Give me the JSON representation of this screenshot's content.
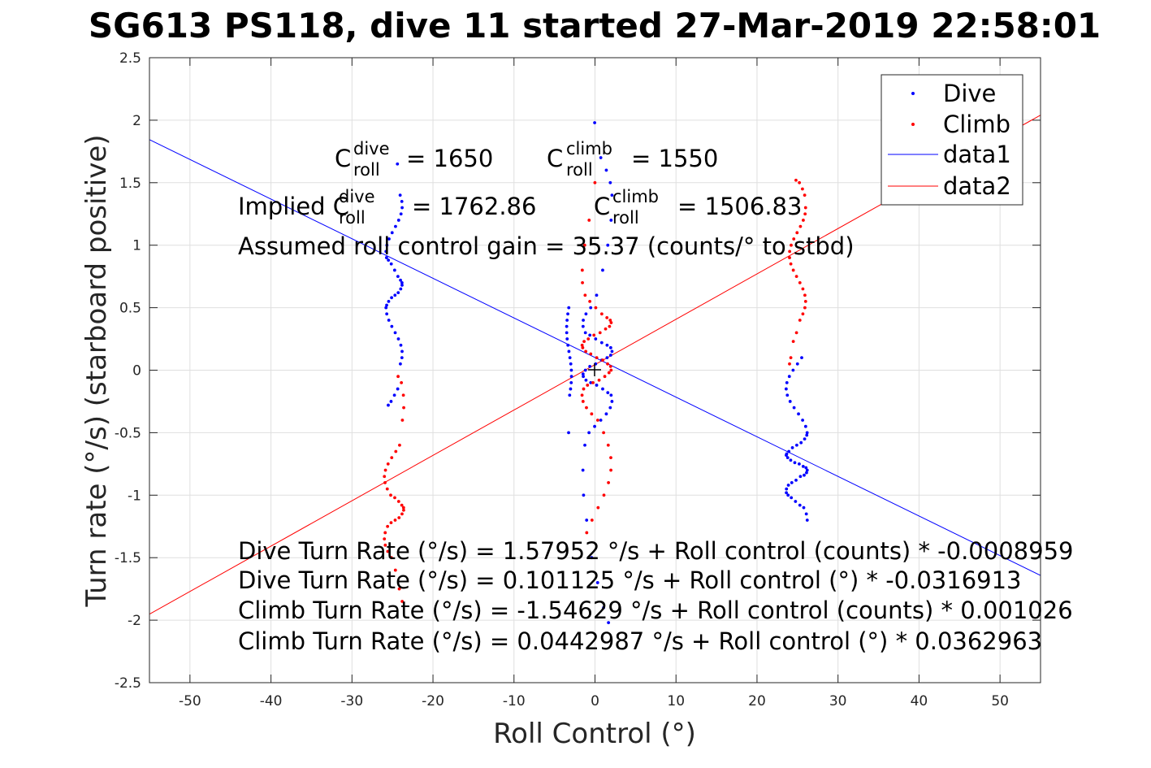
{
  "chart_data": {
    "type": "scatter",
    "title": "SG613 PS118, dive 11 started 27-Mar-2019 22:58:01",
    "xlabel": "Roll Control (°)",
    "ylabel": "Turn rate (°/s) (starboard positive)",
    "xlim": [
      -55,
      55
    ],
    "ylim": [
      -2.5,
      2.5
    ],
    "xticks": [
      -50,
      -40,
      -30,
      -20,
      -10,
      0,
      10,
      20,
      30,
      40,
      50
    ],
    "yticks": [
      -2.5,
      -2,
      -1.5,
      -1,
      -0.5,
      0,
      0.5,
      1,
      1.5,
      2,
      2.5
    ],
    "xtick_labels": [
      "-50",
      "-40",
      "-30",
      "-20",
      "-10",
      "0",
      "10",
      "20",
      "30",
      "40",
      "50"
    ],
    "ytick_labels": [
      "-2.5",
      "-2",
      "-1.5",
      "-1",
      "-0.5",
      "0",
      "0.5",
      "1",
      "1.5",
      "2",
      "2.5"
    ],
    "grid": true,
    "legend_position": "top-right",
    "series": [
      {
        "name": "Dive",
        "kind": "points",
        "color": "#0000ff",
        "clusters": [
          {
            "x_center": -24.8,
            "x_spread": 1.0,
            "y_values": [
              1.65,
              1.4,
              1.35,
              1.3,
              1.25,
              1.2,
              1.15,
              1.1,
              1.05,
              1.0,
              0.95,
              0.9,
              0.88,
              0.85,
              0.8,
              0.75,
              0.72,
              0.7,
              0.68,
              0.65,
              0.62,
              0.6,
              0.58,
              0.55,
              0.52,
              0.5,
              0.45,
              0.4,
              0.35,
              0.3,
              0.25,
              0.2,
              0.15,
              0.1,
              0.05,
              -0.15,
              -0.2,
              -0.25,
              -0.28
            ]
          },
          {
            "x_center": -3.2,
            "x_spread": 0.3,
            "y_values": [
              0.5,
              0.45,
              0.4,
              0.35,
              0.3,
              0.25,
              0.2,
              0.15,
              0.1,
              0.05,
              0.0,
              -0.05,
              -0.1,
              -0.15,
              -0.2,
              -0.5
            ]
          },
          {
            "x_center": 0.3,
            "x_spread": 1.8,
            "y_values": [
              1.98,
              1.7,
              1.6,
              1.5,
              1.4,
              1.2,
              1.0,
              0.8,
              0.6,
              0.5,
              0.45,
              0.4,
              0.35,
              0.3,
              0.28,
              0.25,
              0.22,
              0.2,
              0.18,
              0.15,
              0.12,
              0.1,
              0.08,
              0.05,
              0.03,
              0.0,
              -0.03,
              -0.05,
              -0.08,
              -0.1,
              -0.12,
              -0.15,
              -0.18,
              -0.2,
              -0.25,
              -0.3,
              -0.35,
              -0.4,
              -0.45,
              -0.5,
              -0.6,
              -0.8,
              -1.0,
              -1.2,
              -1.5,
              -1.7,
              -1.9,
              -2.02
            ]
          },
          {
            "x_center": 24.9,
            "x_spread": 1.3,
            "y_values": [
              0.1,
              0.05,
              0.0,
              -0.05,
              -0.1,
              -0.15,
              -0.2,
              -0.25,
              -0.3,
              -0.35,
              -0.4,
              -0.45,
              -0.5,
              -0.52,
              -0.55,
              -0.58,
              -0.6,
              -0.62,
              -0.65,
              -0.67,
              -0.68,
              -0.7,
              -0.72,
              -0.74,
              -0.75,
              -0.77,
              -0.78,
              -0.8,
              -0.82,
              -0.84,
              -0.85,
              -0.88,
              -0.9,
              -0.92,
              -0.95,
              -0.98,
              -1.0,
              -1.02,
              -1.05,
              -1.08,
              -1.1,
              -1.15,
              -1.2
            ]
          }
        ]
      },
      {
        "name": "Climb",
        "kind": "points",
        "color": "#ff0000",
        "clusters": [
          {
            "x_center": -24.8,
            "x_spread": 1.2,
            "y_values": [
              -0.05,
              -0.1,
              -0.2,
              -0.3,
              -0.4,
              -0.6,
              -0.65,
              -0.7,
              -0.75,
              -0.8,
              -0.85,
              -0.9,
              -0.95,
              -1.0,
              -1.02,
              -1.05,
              -1.08,
              -1.1,
              -1.12,
              -1.15,
              -1.18,
              -1.2,
              -1.22,
              -1.25,
              -1.3,
              -1.35,
              -1.4,
              -1.45,
              -1.5,
              -1.6,
              -1.75,
              -1.85
            ]
          },
          {
            "x_center": 0.2,
            "x_spread": 1.8,
            "y_values": [
              1.5,
              1.2,
              1.0,
              0.8,
              0.7,
              0.6,
              0.55,
              0.5,
              0.45,
              0.42,
              0.4,
              0.38,
              0.35,
              0.33,
              0.3,
              0.28,
              0.25,
              0.23,
              0.2,
              0.18,
              0.15,
              0.13,
              0.1,
              0.08,
              0.05,
              0.03,
              0.0,
              -0.02,
              -0.05,
              -0.08,
              -0.1,
              -0.12,
              -0.15,
              -0.2,
              -0.25,
              -0.3,
              -0.35,
              -0.4,
              -0.5,
              -0.6,
              -0.7,
              -0.8,
              -0.9,
              -1.0,
              -1.1,
              -1.2,
              -1.3
            ]
          },
          {
            "x_center": 25.0,
            "x_spread": 1.0,
            "y_values": [
              1.52,
              1.5,
              1.45,
              1.4,
              1.3,
              1.25,
              1.2,
              1.15,
              1.1,
              1.05,
              1.0,
              0.95,
              0.9,
              0.85,
              0.8,
              0.75,
              0.7,
              0.65,
              0.6,
              0.55,
              0.5,
              0.45,
              0.4,
              0.3,
              0.23,
              0.1,
              0.05
            ]
          }
        ]
      },
      {
        "name": "data1",
        "kind": "line",
        "color": "#0000ff",
        "intercept": 0.101125,
        "slope": -0.0316913
      },
      {
        "name": "data2",
        "kind": "line",
        "color": "#ff0000",
        "intercept": 0.0442987,
        "slope": 0.0362963
      }
    ],
    "annotations": {
      "c_dive": {
        "base": "C",
        "sup": "dive",
        "sub": "roll",
        "value": "= 1650"
      },
      "c_climb": {
        "base": "C",
        "sup": "climb",
        "sub": "roll",
        "value": "= 1550"
      },
      "implied_prefix": "Implied C",
      "implied_dive": {
        "sup": "dive",
        "sub": "roll",
        "value": "= 1762.86"
      },
      "implied_climb": {
        "base": "C",
        "sup": "climb",
        "sub": "roll",
        "value": "= 1506.83"
      },
      "gain": "Assumed roll control gain = 35.37 (counts/° to stbd)",
      "eq1": "Dive Turn Rate (°/s) = 1.57952 °/s + Roll control (counts) * -0.0008959",
      "eq2": "Dive Turn Rate (°/s) = 0.101125 °/s + Roll control (°) * -0.0316913",
      "eq3": "Climb Turn Rate (°/s) = -1.54629 °/s + Roll control (counts) * 0.001026",
      "eq4": "Climb Turn Rate (°/s) = 0.0442987 °/s + Roll control (°) * 0.0362963"
    }
  }
}
